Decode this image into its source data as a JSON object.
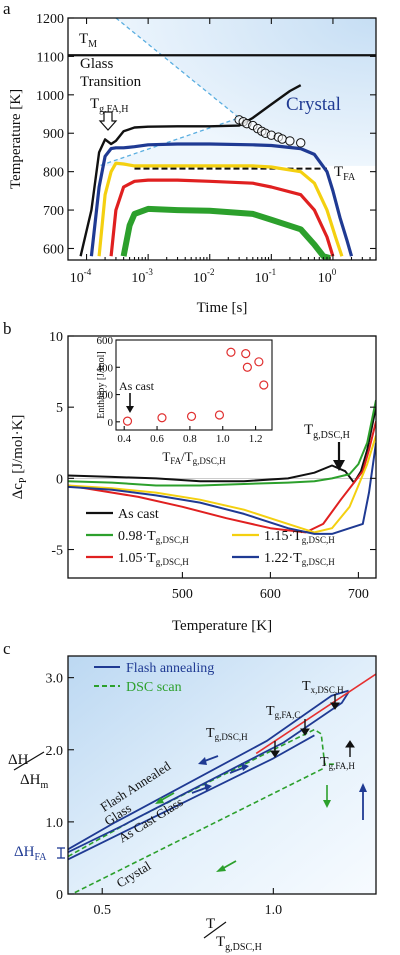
{
  "chart_data": [
    {
      "panel": "a",
      "type": "line",
      "xlabel": "Time [s]",
      "ylabel": "Temperature [K]",
      "xscale": "log",
      "xlim": [
        5e-05,
        5
      ],
      "ylim": [
        570,
        1200
      ],
      "x_ticks": [
        "10",
        "10",
        "10",
        "10",
        "10"
      ],
      "x_tick_exponents": [
        "-4",
        "-3",
        "-2",
        "-1",
        "0"
      ],
      "y_ticks": [
        "600",
        "700",
        "800",
        "900",
        "1000",
        "1100",
        "1200"
      ],
      "labels": {
        "tm": "T",
        "tm_sub": "M",
        "glass1": "Glass",
        "glass2": "Transition",
        "tg": "T",
        "tg_sub": "g,FA,H",
        "crystal": "Crystal",
        "tfa": "T",
        "tfa_sub": "FA"
      },
      "tm_K": 1103,
      "tfa_K": 808,
      "series": [
        {
          "color": "#111111",
          "x": [
            8e-05,
            0.00012,
            0.00016,
            0.0002,
            0.00025,
            0.0003,
            0.0004,
            0.0006,
            0.001,
            0.003,
            0.01,
            0.03,
            0.05,
            0.1,
            0.2,
            0.3
          ],
          "y": [
            580,
            700,
            850,
            884,
            872,
            880,
            905,
            915,
            917,
            918,
            918,
            920,
            940,
            975,
            1010,
            1025
          ]
        },
        {
          "color": "#1f3a93",
          "x": [
            0.00012,
            0.00016,
            0.0002,
            0.00025,
            0.0003,
            0.0004,
            0.0006,
            0.001,
            0.003,
            0.01,
            0.05,
            0.1,
            0.3,
            0.5,
            0.8,
            1,
            1.3,
            1.7,
            2
          ],
          "y": [
            580,
            760,
            840,
            860,
            862,
            862,
            865,
            870,
            872,
            872,
            870,
            868,
            860,
            845,
            800,
            750,
            680,
            620,
            580
          ]
        },
        {
          "color": "#f4d010",
          "x": [
            0.00016,
            0.0002,
            0.00025,
            0.0003,
            0.0004,
            0.0006,
            0.001,
            0.003,
            0.01,
            0.05,
            0.1,
            0.3,
            0.5,
            0.8,
            1.1,
            1.4
          ],
          "y": [
            580,
            740,
            800,
            822,
            820,
            815,
            815,
            815,
            815,
            815,
            812,
            800,
            770,
            700,
            630,
            580
          ]
        },
        {
          "color": "#e02020",
          "x": [
            0.00025,
            0.0003,
            0.0004,
            0.0006,
            0.001,
            0.003,
            0.01,
            0.05,
            0.1,
            0.3,
            0.5,
            0.8,
            1
          ],
          "y": [
            580,
            700,
            760,
            775,
            778,
            778,
            775,
            770,
            760,
            740,
            700,
            630,
            580
          ]
        },
        {
          "color": "#2ca02c",
          "x": [
            0.0004,
            0.0005,
            0.0006,
            0.001,
            0.003,
            0.01,
            0.05,
            0.1,
            0.3,
            0.5,
            0.7,
            0.9
          ],
          "y": [
            580,
            660,
            690,
            703,
            700,
            698,
            690,
            675,
            650,
            610,
            580,
            575
          ]
        }
      ],
      "tx_circles": {
        "x": [
          0.03,
          0.035,
          0.04,
          0.05,
          0.06,
          0.07,
          0.08,
          0.1,
          0.13,
          0.15,
          0.2,
          0.3
        ],
        "y": [
          935,
          930,
          925,
          920,
          912,
          905,
          900,
          895,
          890,
          885,
          880,
          875
        ]
      }
    },
    {
      "panel": "b",
      "type": "line",
      "xlabel": "Temperature [K]",
      "ylabel": "Δc",
      "ylabel_sub": "P",
      "ylabel_units": " [J/mol·K]",
      "xlim": [
        370,
        720
      ],
      "ylim": [
        -7,
        10
      ],
      "x_ticks": [
        "500",
        "600",
        "700"
      ],
      "y_ticks": [
        "-5",
        "0",
        "5",
        "10"
      ],
      "annotation": "T",
      "annotation_sub": "g,DSC,H",
      "legend": [
        {
          "text": "As cast",
          "color": "#111111"
        },
        {
          "text": "0.98·T",
          "sub": "g,DSC,H",
          "color": "#2ca02c"
        },
        {
          "text": "1.05·T",
          "sub": "g,DSC,H",
          "color": "#e02020"
        },
        {
          "text": "1.15·T",
          "sub": "g,DSC,H",
          "color": "#f4d010"
        },
        {
          "text": "1.22·T",
          "sub": "g,DSC,H",
          "color": "#1f3a93"
        }
      ],
      "series": [
        {
          "color": "#111111",
          "x": [
            370,
            420,
            470,
            520,
            570,
            620,
            650,
            670,
            685,
            695,
            703,
            710,
            715,
            720
          ],
          "y": [
            0.2,
            0.1,
            0,
            -0.2,
            -0.2,
            0,
            0.4,
            0.9,
            0.5,
            -0.3,
            0.5,
            2,
            3.5,
            5
          ]
        },
        {
          "color": "#2ca02c",
          "x": [
            370,
            420,
            470,
            520,
            570,
            620,
            650,
            670,
            690,
            700,
            710,
            720
          ],
          "y": [
            -0.2,
            -0.3,
            -0.5,
            -0.5,
            -0.4,
            -0.3,
            -0.2,
            0,
            0.3,
            1,
            2.5,
            5.5
          ]
        },
        {
          "color": "#e02020",
          "x": [
            370,
            400,
            450,
            500,
            550,
            600,
            640,
            660,
            680,
            695,
            705,
            712,
            720
          ],
          "y": [
            -0.5,
            -0.8,
            -1.3,
            -2,
            -2.8,
            -3.5,
            -3.8,
            -3.2,
            -1.5,
            -0.3,
            0.5,
            2,
            4
          ]
        },
        {
          "color": "#f4d010",
          "x": [
            370,
            420,
            470,
            520,
            570,
            620,
            650,
            670,
            690,
            700,
            710,
            720
          ],
          "y": [
            -0.5,
            -0.7,
            -1,
            -1.5,
            -2.2,
            -3.2,
            -3.8,
            -3.5,
            -2,
            -0.5,
            1,
            3
          ]
        },
        {
          "color": "#1f3a93",
          "x": [
            370,
            420,
            470,
            520,
            570,
            620,
            650,
            670,
            690,
            705,
            712,
            720
          ],
          "y": [
            -0.6,
            -0.8,
            -1.2,
            -1.7,
            -2.5,
            -3.5,
            -3.9,
            -3.9,
            -3.5,
            -3.2,
            -1,
            2.5
          ]
        }
      ],
      "inset": {
        "type": "scatter",
        "xlabel": "T",
        "xlabel_sub": "FA",
        "xlabel_mid": "/T",
        "xlabel_sub2": "g,DSC,H",
        "ylabel": "Enthalpy [J/mol]",
        "xlim": [
          0.35,
          1.3
        ],
        "ylim": [
          -60,
          600
        ],
        "x_ticks": [
          "0.4",
          "0.6",
          "0.8",
          "1.0",
          "1.2"
        ],
        "y_ticks": [
          "0",
          "200",
          "400",
          "600"
        ],
        "annotation": "As cast",
        "x": [
          0.42,
          0.63,
          0.81,
          0.98,
          1.05,
          1.14,
          1.15,
          1.22,
          1.25
        ],
        "y": [
          5,
          30,
          40,
          50,
          510,
          500,
          400,
          440,
          270
        ]
      }
    },
    {
      "panel": "c",
      "type": "line",
      "xlabel": "T",
      "xlabel_den": "T",
      "xlabel_den_sub": "g,DSC,H",
      "ylabel": "ΔH",
      "ylabel_den": "ΔH",
      "ylabel_den_sub": "m",
      "xlim": [
        0.4,
        1.3
      ],
      "ylim": [
        0,
        3.3
      ],
      "x_ticks": [
        "0.5",
        "1.0"
      ],
      "y_ticks": [
        "0",
        "1.0",
        "2.0",
        "3.0"
      ],
      "dh_label": "ΔH",
      "dh_sub": "FA",
      "legend": [
        {
          "text": "Flash annealing",
          "color": "#1f3a93",
          "dash": false
        },
        {
          "text": "DSC scan",
          "color": "#2ca02c",
          "dash": true
        }
      ],
      "labels": {
        "fag1": "Flash Annealed",
        "fag2": "Glass",
        "acg": "As Cast Glass",
        "crystal": "Crystal",
        "tgdsc": "T",
        "tgdsc_sub": "g,DSC,H",
        "tgfac": "T",
        "tgfac_sub": "g,FA,C",
        "txdsc": "T",
        "txdsc_sub": "x,DSC,H",
        "tgfah": "T",
        "tgfah_sub": "g,FA,H"
      },
      "liquid_line": {
        "x": [
          0.95,
          1.3
        ],
        "y": [
          1.95,
          3.05
        ]
      },
      "crystal_line": {
        "x": [
          0.42,
          1.15
        ],
        "y": [
          0.02,
          1.75
        ]
      },
      "as_cast_glass": {
        "x": [
          0.4,
          1.0,
          1.12
        ],
        "y": [
          0.48,
          1.88,
          2.2
        ]
      },
      "flash_glass_low": {
        "x": [
          0.4,
          0.56,
          0.6,
          1.03,
          1.2,
          1.22
        ],
        "y": [
          0.58,
          0.95,
          1.05,
          2.1,
          2.65,
          2.8
        ]
      },
      "flash_glass_high": {
        "x": [
          0.4,
          0.54,
          0.58,
          0.98,
          1.17,
          1.22
        ],
        "y": [
          0.62,
          1.0,
          1.1,
          2.12,
          2.75,
          2.82
        ]
      },
      "dsc_curve": {
        "x": [
          0.4,
          0.6,
          1.0,
          1.12,
          1.14,
          1.15,
          1.18
        ],
        "y": [
          0.52,
          1.05,
          2.0,
          2.28,
          2.22,
          1.8,
          1.8
        ]
      }
    }
  ],
  "panel_letters": [
    "a",
    "b",
    "c"
  ]
}
